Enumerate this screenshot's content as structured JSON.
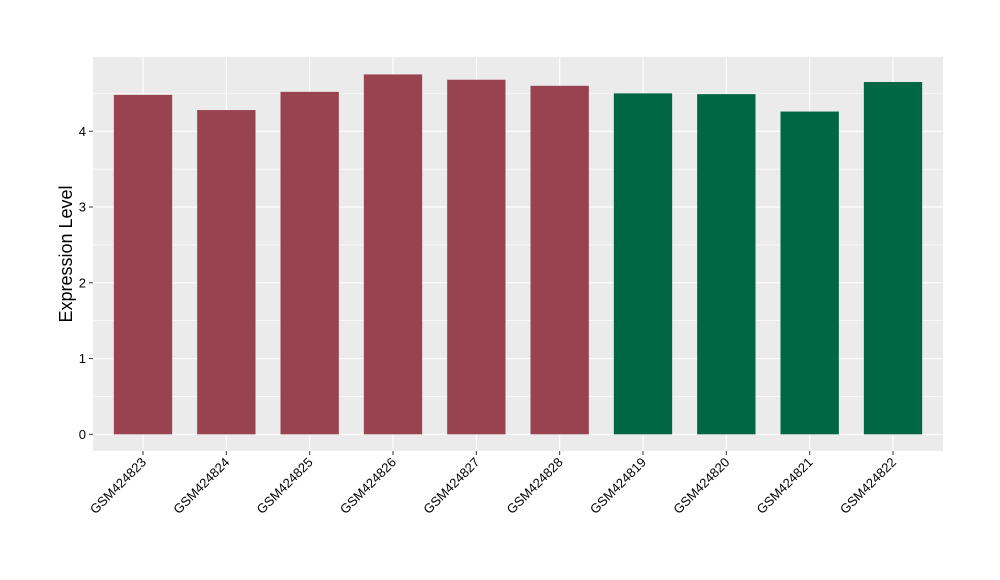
{
  "chart_data": {
    "type": "bar",
    "title": "",
    "xlabel": "",
    "ylabel": "Expression Level",
    "ylim": [
      -0.22,
      4.98
    ],
    "yticks": [
      0,
      1,
      2,
      3,
      4
    ],
    "grid": true,
    "panel_background": "#EBEBEB",
    "grid_color": "#FFFFFF",
    "categories": [
      "GSM424823",
      "GSM424824",
      "GSM424825",
      "GSM424826",
      "GSM424827",
      "GSM424828",
      "GSM424819",
      "GSM424820",
      "GSM424821",
      "GSM424822"
    ],
    "values": [
      4.48,
      4.28,
      4.52,
      4.75,
      4.68,
      4.6,
      4.5,
      4.49,
      4.26,
      4.65
    ],
    "colors": [
      "#9A4350",
      "#9A4350",
      "#9A4350",
      "#9A4350",
      "#9A4350",
      "#9A4350",
      "#006644",
      "#006644",
      "#006644",
      "#006644"
    ]
  }
}
